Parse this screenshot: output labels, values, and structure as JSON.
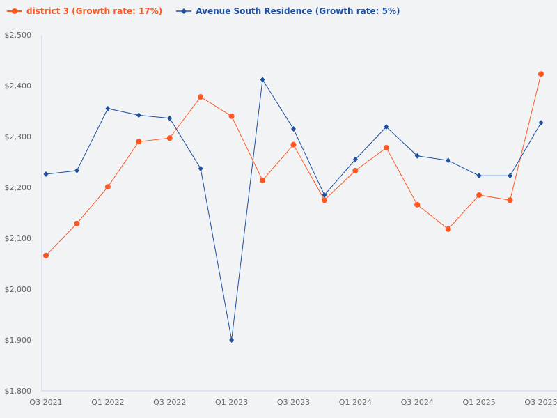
{
  "chart_data": {
    "type": "line",
    "title": "",
    "xlabel": "",
    "ylabel": "",
    "categories": [
      "Q3 2021",
      "Q4 2021",
      "Q1 2022",
      "Q2 2022",
      "Q3 2022",
      "Q4 2022",
      "Q1 2023",
      "Q2 2023",
      "Q3 2023",
      "Q4 2023",
      "Q1 2024",
      "Q2 2024",
      "Q3 2024",
      "Q4 2024",
      "Q1 2025",
      "Q2 2025",
      "Q3 2025"
    ],
    "x_tick_labels": [
      "Q3 2021",
      "Q1 2022",
      "Q3 2022",
      "Q1 2023",
      "Q3 2023",
      "Q1 2024",
      "Q3 2024",
      "Q1 2025",
      "Q3 2025"
    ],
    "y_tick_labels": [
      "$1,800",
      "$1,900",
      "$2,000",
      "$2,100",
      "$2,200",
      "$2,300",
      "$2,400",
      "$2,500"
    ],
    "ylim": [
      1800,
      2500
    ],
    "grid": false,
    "legend_position": "top-left",
    "series": [
      {
        "name": "district 3 (Growth rate: 17%)",
        "color": "#ff5722",
        "marker": "circle",
        "values": [
          2066,
          2129,
          2201,
          2290,
          2297,
          2378,
          2340,
          2214,
          2284,
          2175,
          2233,
          2278,
          2166,
          2118,
          2185,
          2175,
          2423
        ]
      },
      {
        "name": "Avenue South Residence (Growth rate: 5%)",
        "color": "#1e4fa0",
        "marker": "diamond",
        "values": [
          2226,
          2233,
          2355,
          2342,
          2336,
          2237,
          1900,
          2412,
          2315,
          2185,
          2255,
          2319,
          2262,
          2253,
          2223,
          2223,
          2327
        ]
      }
    ]
  }
}
